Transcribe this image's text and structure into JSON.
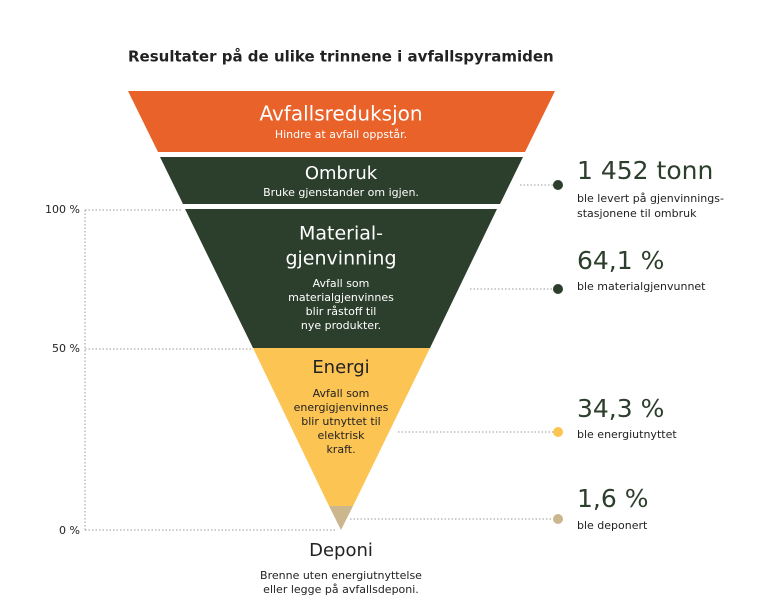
{
  "title": "Resultater på de ulike trinnene i avfallspyramiden",
  "levels": [
    {
      "name": [
        "Avfallsreduksjon"
      ],
      "description": [
        "Hindre at avfall oppstår."
      ]
    },
    {
      "name": [
        "Ombruk"
      ],
      "description": [
        "Bruke gjenstander om igjen."
      ]
    },
    {
      "name": [
        "Material-",
        "gjenvinning"
      ],
      "description": [
        "Avfall som",
        "materialgjenvinnes",
        "blir råstoff til",
        "nye produkter."
      ]
    },
    {
      "name": [
        "Energi"
      ],
      "description": [
        "Avfall som",
        "energigjenvinnes",
        "blir utnyttet til",
        "elektrisk",
        "kraft."
      ]
    },
    {
      "name": [
        "Deponi"
      ],
      "description": [
        "Brenne uten energiutnyttelse",
        "eller legge på avfallsdeponi."
      ]
    }
  ],
  "axis_labels": [
    "100 %",
    "50 %",
    "0 %"
  ],
  "results": [
    {
      "value": "1 452 tonn",
      "description": [
        "ble levert på gjenvinnings-",
        "stasjonene til ombruk"
      ]
    },
    {
      "value": "64,1 %",
      "description": [
        "ble materialgjenvunnet"
      ]
    },
    {
      "value": "34,3 %",
      "description": [
        "ble energiutnyttet"
      ]
    },
    {
      "value": "1,6 %",
      "description": [
        "ble deponert"
      ]
    }
  ]
}
